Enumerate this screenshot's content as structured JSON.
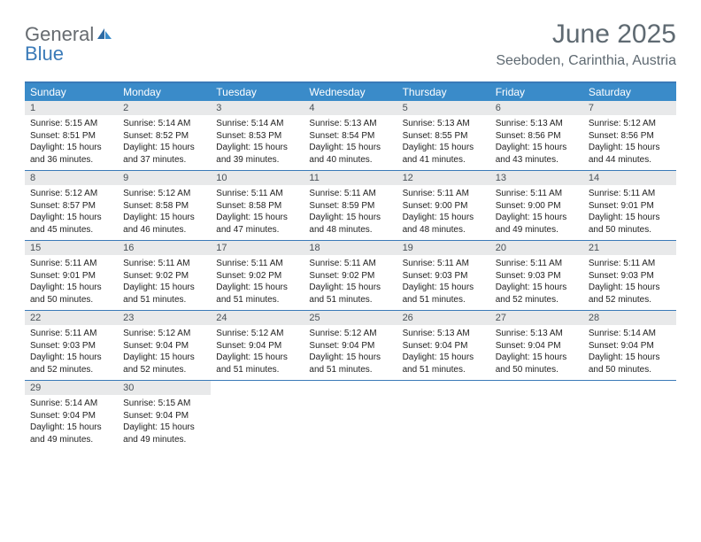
{
  "header": {
    "logo_word1": "General",
    "logo_word2": "Blue",
    "month": "June 2025",
    "location": "Seeboden, Carinthia, Austria"
  },
  "colors": {
    "header_bar": "#3a8bc9",
    "border": "#3a7ab8",
    "day_num_bg": "#e8e9ea",
    "text_muted": "#5f6a72",
    "logo_gray": "#666b70",
    "logo_blue": "#3a7ab8"
  },
  "day_names": [
    "Sunday",
    "Monday",
    "Tuesday",
    "Wednesday",
    "Thursday",
    "Friday",
    "Saturday"
  ],
  "weeks": [
    [
      {
        "n": "1",
        "sr": "5:15 AM",
        "ss": "8:51 PM",
        "dl1": "Daylight: 15 hours",
        "dl2": "and 36 minutes."
      },
      {
        "n": "2",
        "sr": "5:14 AM",
        "ss": "8:52 PM",
        "dl1": "Daylight: 15 hours",
        "dl2": "and 37 minutes."
      },
      {
        "n": "3",
        "sr": "5:14 AM",
        "ss": "8:53 PM",
        "dl1": "Daylight: 15 hours",
        "dl2": "and 39 minutes."
      },
      {
        "n": "4",
        "sr": "5:13 AM",
        "ss": "8:54 PM",
        "dl1": "Daylight: 15 hours",
        "dl2": "and 40 minutes."
      },
      {
        "n": "5",
        "sr": "5:13 AM",
        "ss": "8:55 PM",
        "dl1": "Daylight: 15 hours",
        "dl2": "and 41 minutes."
      },
      {
        "n": "6",
        "sr": "5:13 AM",
        "ss": "8:56 PM",
        "dl1": "Daylight: 15 hours",
        "dl2": "and 43 minutes."
      },
      {
        "n": "7",
        "sr": "5:12 AM",
        "ss": "8:56 PM",
        "dl1": "Daylight: 15 hours",
        "dl2": "and 44 minutes."
      }
    ],
    [
      {
        "n": "8",
        "sr": "5:12 AM",
        "ss": "8:57 PM",
        "dl1": "Daylight: 15 hours",
        "dl2": "and 45 minutes."
      },
      {
        "n": "9",
        "sr": "5:12 AM",
        "ss": "8:58 PM",
        "dl1": "Daylight: 15 hours",
        "dl2": "and 46 minutes."
      },
      {
        "n": "10",
        "sr": "5:11 AM",
        "ss": "8:58 PM",
        "dl1": "Daylight: 15 hours",
        "dl2": "and 47 minutes."
      },
      {
        "n": "11",
        "sr": "5:11 AM",
        "ss": "8:59 PM",
        "dl1": "Daylight: 15 hours",
        "dl2": "and 48 minutes."
      },
      {
        "n": "12",
        "sr": "5:11 AM",
        "ss": "9:00 PM",
        "dl1": "Daylight: 15 hours",
        "dl2": "and 48 minutes."
      },
      {
        "n": "13",
        "sr": "5:11 AM",
        "ss": "9:00 PM",
        "dl1": "Daylight: 15 hours",
        "dl2": "and 49 minutes."
      },
      {
        "n": "14",
        "sr": "5:11 AM",
        "ss": "9:01 PM",
        "dl1": "Daylight: 15 hours",
        "dl2": "and 50 minutes."
      }
    ],
    [
      {
        "n": "15",
        "sr": "5:11 AM",
        "ss": "9:01 PM",
        "dl1": "Daylight: 15 hours",
        "dl2": "and 50 minutes."
      },
      {
        "n": "16",
        "sr": "5:11 AM",
        "ss": "9:02 PM",
        "dl1": "Daylight: 15 hours",
        "dl2": "and 51 minutes."
      },
      {
        "n": "17",
        "sr": "5:11 AM",
        "ss": "9:02 PM",
        "dl1": "Daylight: 15 hours",
        "dl2": "and 51 minutes."
      },
      {
        "n": "18",
        "sr": "5:11 AM",
        "ss": "9:02 PM",
        "dl1": "Daylight: 15 hours",
        "dl2": "and 51 minutes."
      },
      {
        "n": "19",
        "sr": "5:11 AM",
        "ss": "9:03 PM",
        "dl1": "Daylight: 15 hours",
        "dl2": "and 51 minutes."
      },
      {
        "n": "20",
        "sr": "5:11 AM",
        "ss": "9:03 PM",
        "dl1": "Daylight: 15 hours",
        "dl2": "and 52 minutes."
      },
      {
        "n": "21",
        "sr": "5:11 AM",
        "ss": "9:03 PM",
        "dl1": "Daylight: 15 hours",
        "dl2": "and 52 minutes."
      }
    ],
    [
      {
        "n": "22",
        "sr": "5:11 AM",
        "ss": "9:03 PM",
        "dl1": "Daylight: 15 hours",
        "dl2": "and 52 minutes."
      },
      {
        "n": "23",
        "sr": "5:12 AM",
        "ss": "9:04 PM",
        "dl1": "Daylight: 15 hours",
        "dl2": "and 52 minutes."
      },
      {
        "n": "24",
        "sr": "5:12 AM",
        "ss": "9:04 PM",
        "dl1": "Daylight: 15 hours",
        "dl2": "and 51 minutes."
      },
      {
        "n": "25",
        "sr": "5:12 AM",
        "ss": "9:04 PM",
        "dl1": "Daylight: 15 hours",
        "dl2": "and 51 minutes."
      },
      {
        "n": "26",
        "sr": "5:13 AM",
        "ss": "9:04 PM",
        "dl1": "Daylight: 15 hours",
        "dl2": "and 51 minutes."
      },
      {
        "n": "27",
        "sr": "5:13 AM",
        "ss": "9:04 PM",
        "dl1": "Daylight: 15 hours",
        "dl2": "and 50 minutes."
      },
      {
        "n": "28",
        "sr": "5:14 AM",
        "ss": "9:04 PM",
        "dl1": "Daylight: 15 hours",
        "dl2": "and 50 minutes."
      }
    ],
    [
      {
        "n": "29",
        "sr": "5:14 AM",
        "ss": "9:04 PM",
        "dl1": "Daylight: 15 hours",
        "dl2": "and 49 minutes."
      },
      {
        "n": "30",
        "sr": "5:15 AM",
        "ss": "9:04 PM",
        "dl1": "Daylight: 15 hours",
        "dl2": "and 49 minutes."
      },
      null,
      null,
      null,
      null,
      null
    ]
  ]
}
